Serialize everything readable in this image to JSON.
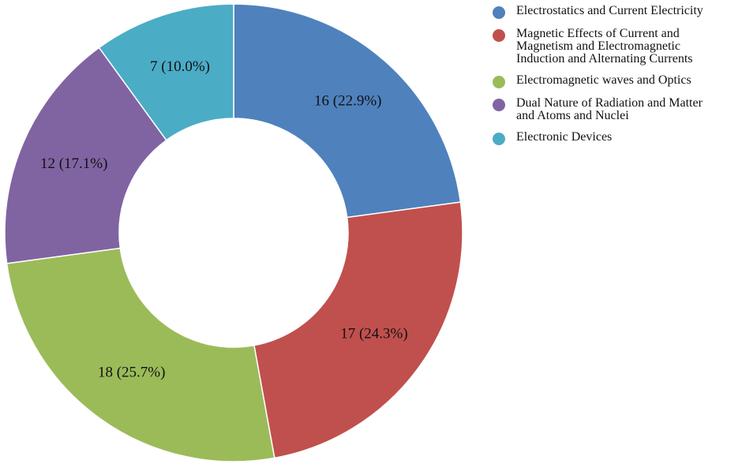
{
  "chart_data": {
    "type": "pie",
    "variant": "donut",
    "categories": [
      "Electrostatics and Current Electricity",
      "Magnetic Effects of Current and Magnetism and Electromagnetic Induction and Alternating Currents",
      "Electromagnetic waves and Optics",
      "Dual Nature of Radiation and Matter and Atoms and Nuclei",
      "Electronic Devices"
    ],
    "values": [
      16,
      17,
      18,
      12,
      7
    ],
    "data_labels": [
      "16 (22.9%)",
      "17 (24.3%)",
      "18 (25.7%)",
      "12 (17.1%)",
      "7 (10.0%)"
    ],
    "colors": [
      "#4f81bd",
      "#c0504d",
      "#9bbb59",
      "#8064a2",
      "#4bacc6"
    ],
    "legend_position": "right",
    "start": "top",
    "direction": "clockwise"
  },
  "legend": {
    "items": [
      {
        "lines": [
          "Electrostatics and Current Electricity"
        ]
      },
      {
        "lines": [
          "Magnetic Effects of Current and",
          "Magnetism and Electromagnetic",
          "Induction and Alternating Currents"
        ]
      },
      {
        "lines": [
          "Electromagnetic waves and Optics"
        ]
      },
      {
        "lines": [
          "Dual Nature of Radiation and Matter",
          "and Atoms and Nuclei"
        ]
      },
      {
        "lines": [
          "Electronic Devices"
        ]
      }
    ]
  }
}
